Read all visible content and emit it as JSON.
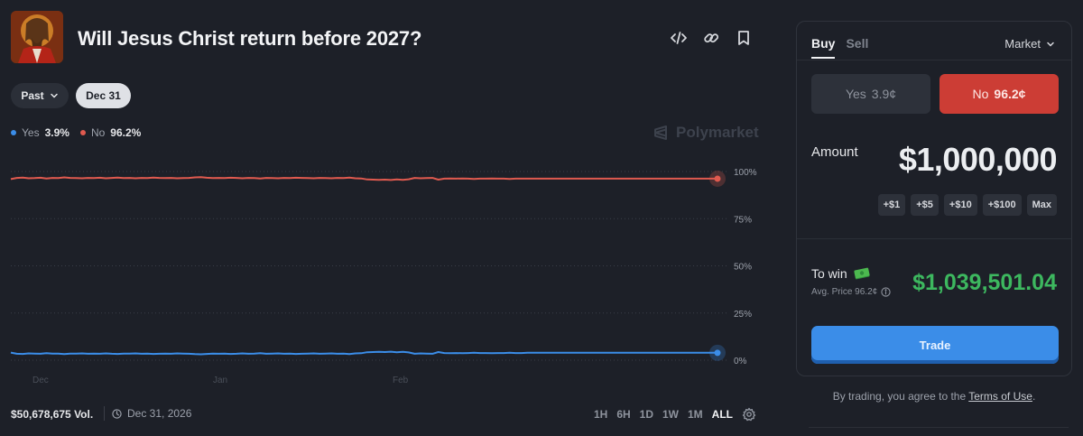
{
  "market": {
    "title": "Will Jesus Christ return before 2027?"
  },
  "header_icons": [
    "code-icon",
    "link-icon",
    "bookmark-icon"
  ],
  "filters": {
    "past_label": "Past",
    "date_label": "Dec 31"
  },
  "legend": [
    {
      "name": "Yes",
      "value": "3.9%",
      "color": "#3b8de8"
    },
    {
      "name": "No",
      "value": "96.2%",
      "color": "#e05a4f"
    }
  ],
  "watermark": "Polymarket",
  "chart_data": {
    "type": "line",
    "x_labels": [
      "Dec",
      "Jan",
      "Feb"
    ],
    "y_ticks": [
      "100%",
      "75%",
      "50%",
      "25%",
      "0%"
    ],
    "ylim": [
      0,
      100
    ],
    "grid": true,
    "series": [
      {
        "name": "No",
        "color": "#e05a4f",
        "values": [
          96.0,
          96.6,
          96.8,
          96.4,
          96.5,
          96.7,
          96.3,
          96.6,
          96.5,
          96.9,
          96.6,
          96.5,
          96.4,
          96.6,
          96.5,
          96.7,
          96.4,
          96.6,
          96.8,
          96.5,
          96.6,
          96.4,
          96.6,
          96.5,
          96.8,
          96.6,
          96.5,
          96.6,
          96.4,
          96.5,
          96.6,
          96.9,
          97.0,
          96.7,
          96.5,
          96.6,
          96.5,
          96.7,
          96.6,
          96.4,
          96.6,
          96.5,
          96.3,
          96.6,
          96.5,
          96.4,
          96.6,
          96.5,
          96.7,
          96.6,
          96.5,
          96.4,
          96.6,
          96.5,
          96.4,
          96.6,
          96.5,
          96.8,
          96.4,
          96.3,
          95.8,
          95.7,
          95.6,
          95.7,
          95.5,
          95.8,
          95.6,
          95.9,
          96.6,
          96.4,
          96.5,
          96.6,
          95.7,
          96.2,
          96.3,
          96.2,
          96.3,
          96.2,
          96.1,
          96.2,
          96.2,
          96.3,
          96.2,
          96.2,
          96.1,
          96.2,
          96.2,
          96.2,
          96.2,
          96.2,
          96.2,
          96.2,
          96.2,
          96.2,
          96.2,
          96.2,
          96.2,
          96.2,
          96.2,
          96.2,
          96.2,
          96.2,
          96.2,
          96.2,
          96.2,
          96.2,
          96.2,
          96.2,
          96.2,
          96.2,
          96.2,
          96.2,
          96.2,
          96.2,
          96.2,
          96.2,
          96.2,
          96.2,
          96.2,
          96.2
        ]
      },
      {
        "name": "Yes",
        "color": "#3b8de8",
        "values": [
          4.0,
          3.4,
          3.3,
          3.6,
          3.5,
          3.4,
          3.7,
          3.5,
          3.5,
          3.2,
          3.5,
          3.5,
          3.6,
          3.4,
          3.5,
          3.4,
          3.6,
          3.4,
          3.3,
          3.5,
          3.5,
          3.6,
          3.4,
          3.5,
          3.3,
          3.4,
          3.5,
          3.4,
          3.6,
          3.5,
          3.4,
          3.2,
          3.1,
          3.3,
          3.5,
          3.4,
          3.5,
          3.3,
          3.4,
          3.6,
          3.4,
          3.5,
          3.7,
          3.4,
          3.5,
          3.6,
          3.4,
          3.5,
          3.3,
          3.4,
          3.5,
          3.6,
          3.4,
          3.5,
          3.6,
          3.4,
          3.5,
          3.2,
          3.6,
          3.7,
          4.2,
          4.3,
          4.4,
          4.3,
          4.5,
          4.2,
          4.4,
          4.1,
          3.4,
          3.6,
          3.5,
          3.4,
          4.3,
          3.8,
          3.7,
          3.8,
          3.7,
          3.8,
          3.9,
          3.8,
          3.8,
          3.7,
          3.8,
          3.8,
          3.9,
          3.8,
          3.8,
          3.9,
          3.9,
          3.9,
          3.9,
          3.9,
          3.9,
          3.9,
          3.9,
          3.9,
          3.9,
          3.9,
          3.9,
          3.9,
          3.9,
          3.9,
          3.9,
          3.9,
          3.9,
          3.9,
          3.9,
          3.9,
          3.9,
          3.9,
          3.9,
          3.9,
          3.9,
          3.9,
          3.9,
          3.9,
          3.9,
          3.9,
          3.9,
          3.9
        ]
      }
    ]
  },
  "footer": {
    "volume": "$50,678,675 Vol.",
    "end_date": "Dec 31, 2026",
    "ranges": [
      "1H",
      "6H",
      "1D",
      "1W",
      "1M",
      "ALL"
    ],
    "active_range": "ALL"
  },
  "trade": {
    "tab_buy": "Buy",
    "tab_sell": "Sell",
    "order_type": "Market",
    "yes_label": "Yes",
    "yes_price": "3.9¢",
    "no_label": "No",
    "no_price": "96.2¢",
    "amount_label": "Amount",
    "amount_value": "$1,000,000",
    "chips": [
      "+$1",
      "+$5",
      "+$10",
      "+$100",
      "Max"
    ],
    "to_win_label": "To win",
    "avg_price_label": "Avg. Price 96.2¢",
    "to_win_value": "$1,039,501.04",
    "button_label": "Trade",
    "terms_prefix": "By trading, you agree to the ",
    "terms_link": "Terms of Use",
    "terms_suffix": "."
  }
}
